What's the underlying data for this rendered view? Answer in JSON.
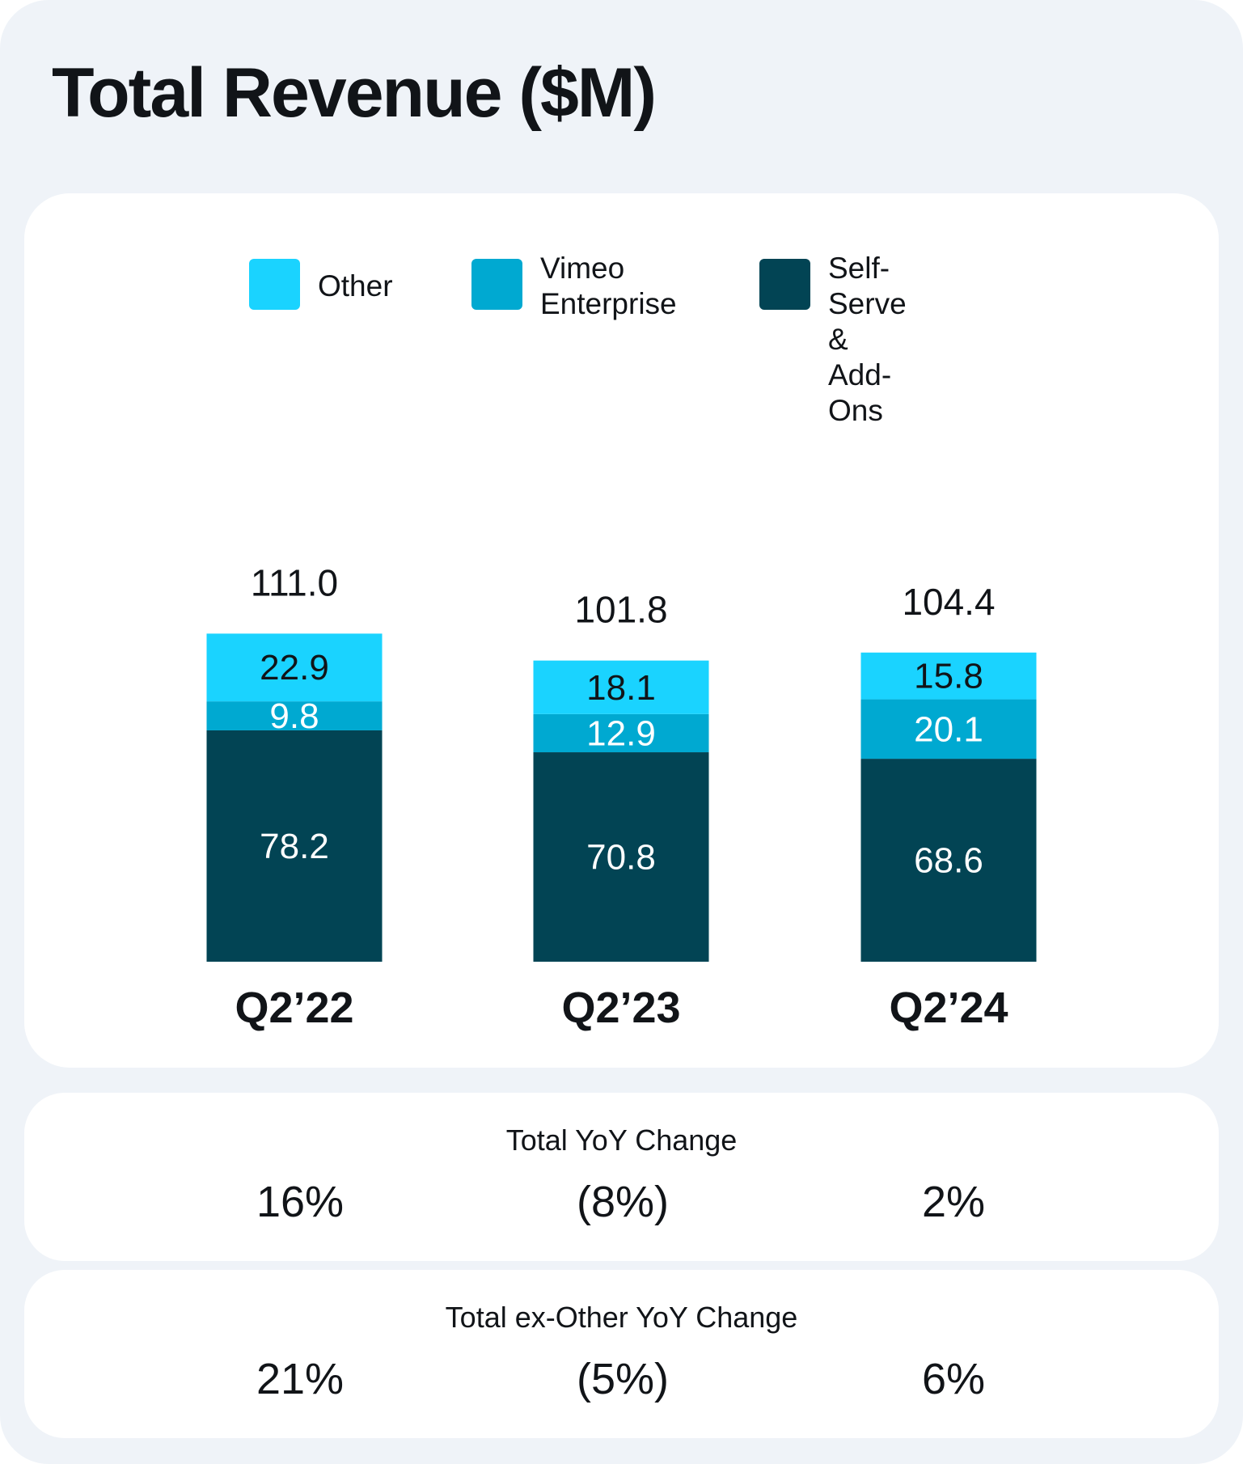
{
  "title": "Total Revenue ($M)",
  "legend": [
    {
      "label": "Other",
      "color": "#1ad3ff"
    },
    {
      "label": "Vimeo\nEnterprise",
      "color": "#00a9d1"
    },
    {
      "label": "Self-Serve\n& Add-Ons",
      "color": "#024454"
    }
  ],
  "chart_data": {
    "type": "bar",
    "stacked": true,
    "title": "Total Revenue ($M)",
    "categories": [
      "Q2’22",
      "Q2’23",
      "Q2’24"
    ],
    "series": [
      {
        "name": "Self-Serve & Add-Ons",
        "values": [
          78.2,
          70.8,
          68.6
        ],
        "color": "#024454",
        "label_color": "#ffffff"
      },
      {
        "name": "Vimeo Enterprise",
        "values": [
          9.8,
          12.9,
          20.1
        ],
        "color": "#00a9d1",
        "label_color": "#ffffff"
      },
      {
        "name": "Other",
        "values": [
          22.9,
          18.1,
          15.8
        ],
        "color": "#1ad3ff",
        "label_color": "#111418"
      }
    ],
    "totals": [
      "111.0",
      "101.8",
      "104.4"
    ],
    "value_labels": [
      [
        "78.2",
        "70.8",
        "68.6"
      ],
      [
        "9.8",
        "12.9",
        "20.1"
      ],
      [
        "22.9",
        "18.1",
        "15.8"
      ]
    ],
    "xlabel": "",
    "ylabel": "",
    "ylim": [
      0,
      111
    ],
    "grid": false,
    "legend_position": "top"
  },
  "yoy_total": {
    "title": "Total YoY Change",
    "values": [
      "16%",
      "(8%)",
      "2%"
    ]
  },
  "yoy_ex_other": {
    "title": "Total ex-Other YoY Change",
    "values": [
      "21%",
      "(5%)",
      "6%"
    ]
  }
}
